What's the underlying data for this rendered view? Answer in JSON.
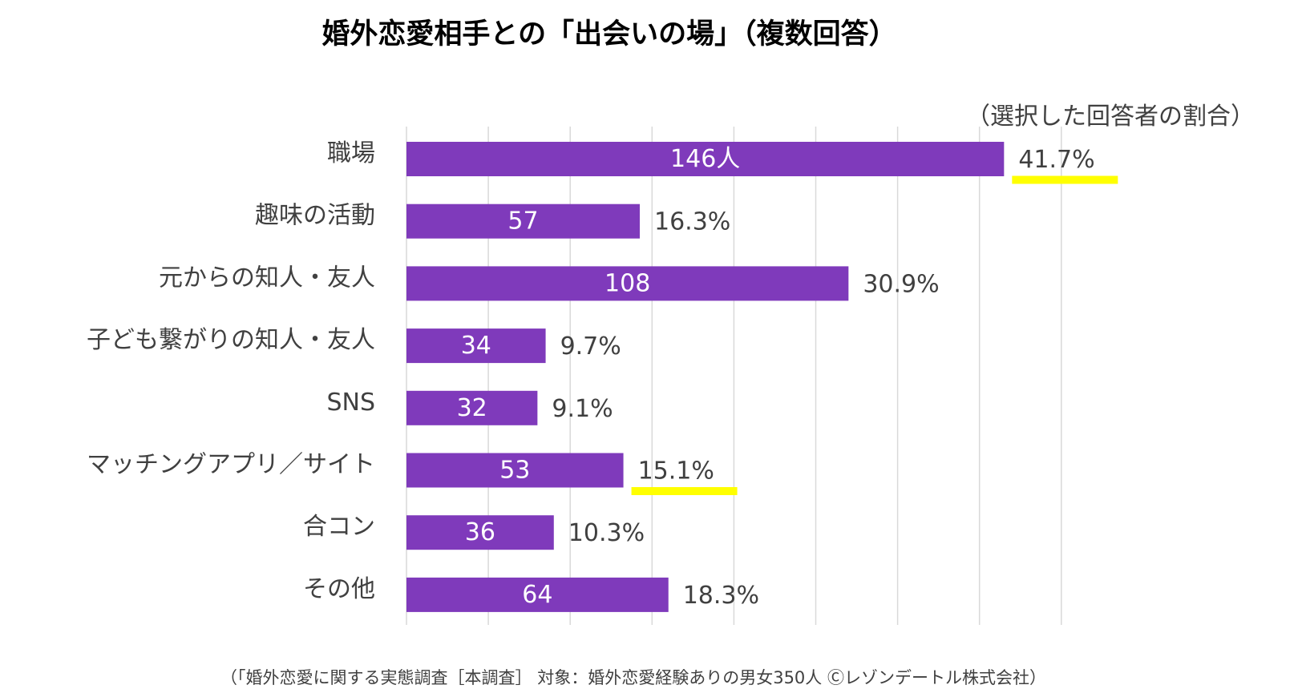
{
  "title": "婚外恋愛相手との「出会いの場」（複数回答）",
  "unit_note": "（選択した回答者の割合）",
  "footer": "（「婚外恋愛に関する実態調査［本調査］ 対象：婚外恋愛経験ありの男女350人 Ⓒレゾンデートル株式会社）",
  "colors": {
    "bar": "#7f3abb",
    "bar_label": "#ffffff",
    "highlight": "#ffff00",
    "grid": "#d9d9d9",
    "text": "#404040"
  },
  "chart_data": {
    "type": "bar",
    "orientation": "horizontal",
    "categories": [
      "職場",
      "趣味の活動",
      "元からの知人・友人",
      "子ども繋がりの知人・友人",
      "SNS",
      "マッチングアプリ／サイト",
      "合コン",
      "その他"
    ],
    "counts": [
      146,
      57,
      108,
      34,
      32,
      53,
      36,
      64
    ],
    "values": [
      41.7,
      16.3,
      30.9,
      9.7,
      9.1,
      15.1,
      10.3,
      18.3
    ],
    "count_labels": [
      "146人",
      "57",
      "108",
      "34",
      "32",
      "53",
      "36",
      "64"
    ],
    "value_labels": [
      "41.7%",
      "16.3%",
      "30.9%",
      "9.7%",
      "9.1%",
      "15.1%",
      "10.3%",
      "18.3%"
    ],
    "highlighted_categories": [
      "職場",
      "マッチングアプリ／サイト"
    ],
    "xlim": [
      0,
      160
    ],
    "grid": true,
    "legend": "none"
  }
}
